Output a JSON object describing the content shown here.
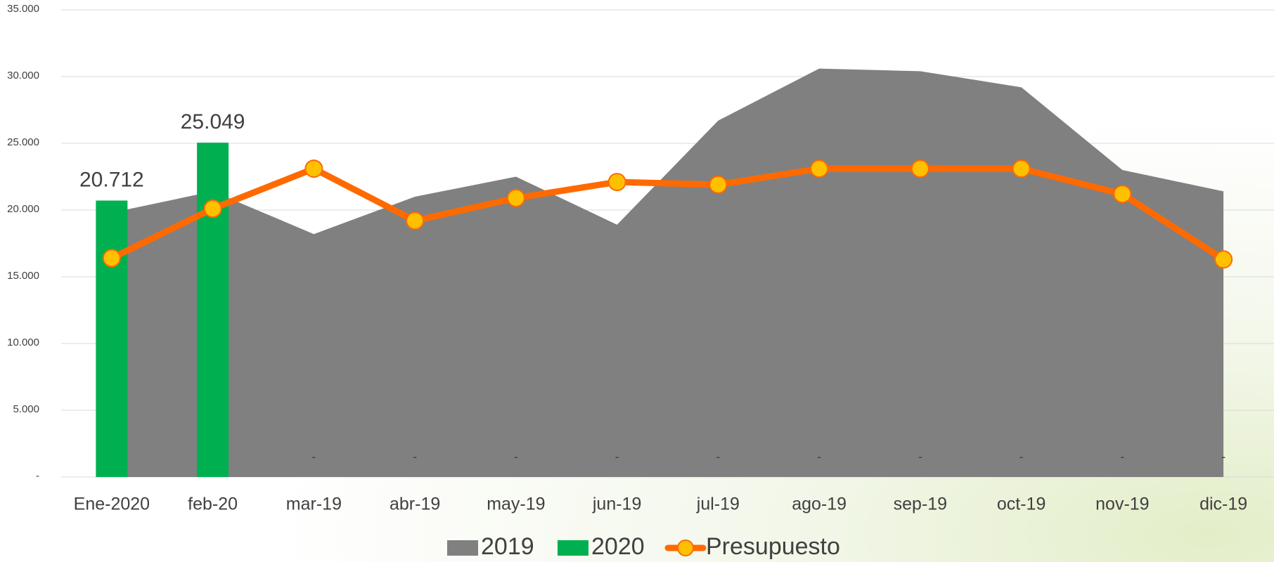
{
  "chart_data": {
    "type": "combo",
    "categories": [
      "Ene-2020",
      "feb-20",
      "mar-19",
      "abr-19",
      "may-19",
      "jun-19",
      "jul-19",
      "ago-19",
      "sep-19",
      "oct-19",
      "nov-19",
      "dic-19"
    ],
    "series": [
      {
        "name": "2019",
        "type": "area",
        "color": "#808080",
        "values": [
          19800,
          21400,
          18200,
          21000,
          22500,
          18900,
          26700,
          30600,
          30400,
          29200,
          23000,
          21400
        ]
      },
      {
        "name": "2020",
        "type": "bar",
        "color": "#00b050",
        "values": [
          20712,
          25049,
          0,
          0,
          0,
          0,
          0,
          0,
          0,
          0,
          0,
          0
        ],
        "value_labels": [
          "20.712",
          "25.049",
          "-",
          "-",
          "-",
          "-",
          "-",
          "-",
          "-",
          "-",
          "-",
          "-"
        ]
      },
      {
        "name": "Presupuesto",
        "type": "line",
        "color": "#ff6a00",
        "marker_color": "#ffc000",
        "values": [
          16400,
          20100,
          23100,
          19200,
          20900,
          22100,
          21900,
          23100,
          23100,
          23100,
          21200,
          16300
        ]
      }
    ],
    "ylim": [
      0,
      35000
    ],
    "yticks": [
      {
        "value": 0,
        "label": "-"
      },
      {
        "value": 5000,
        "label": "5.000"
      },
      {
        "value": 10000,
        "label": "10.000"
      },
      {
        "value": 15000,
        "label": "15.000"
      },
      {
        "value": 20000,
        "label": "20.000"
      },
      {
        "value": 25000,
        "label": "25.000"
      },
      {
        "value": 30000,
        "label": "30.000"
      },
      {
        "value": 35000,
        "label": "35.000"
      }
    ],
    "grid": true,
    "legend": "bottom"
  }
}
